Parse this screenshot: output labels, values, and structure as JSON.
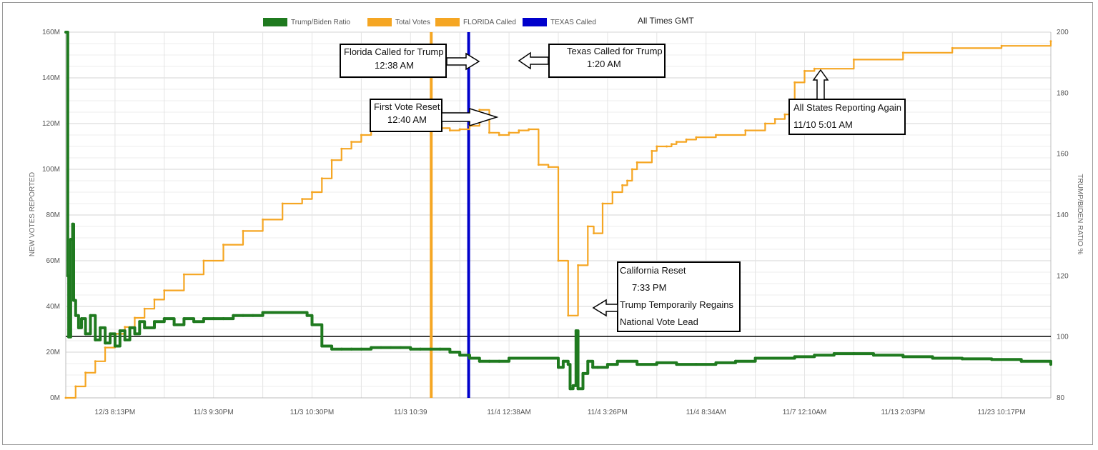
{
  "chart_data": {
    "type": "line",
    "grid": true,
    "legend_position": "top",
    "timezone_note": "All Times GMT",
    "legend": [
      {
        "label": "Trump/Biden Ratio",
        "color": "#1f7a1f"
      },
      {
        "label": "Total Votes",
        "color": "#f5a623"
      },
      {
        "label": "FLORIDA Called",
        "color": "#f5a623"
      },
      {
        "label": "TEXAS Called",
        "color": "#0000cc"
      }
    ],
    "xlabel": "",
    "x_tick_labels": [
      "12/3 8:13PM",
      "11/3 9:30PM",
      "11/3 10:30PM",
      "11/3 10:39",
      "11/4 12:38AM",
      "11/4 3:26PM",
      "11/4 8:34AM",
      "11/7 12:10AM",
      "11/13 2:03PM",
      "11/23 10:17PM"
    ],
    "x_range": [
      0,
      100
    ],
    "y_left": {
      "label": "NEW VOTES REPORTED",
      "range": [
        0,
        160
      ],
      "ticks": [
        "0M",
        "20M",
        "40M",
        "60M",
        "80M",
        "100M",
        "120M",
        "140M",
        "160M"
      ]
    },
    "y_right": {
      "label": "TRUMP/BIDEN RATIO %",
      "range": [
        80,
        200
      ],
      "ticks": [
        "80",
        "100",
        "120",
        "140",
        "160",
        "180",
        "200"
      ]
    },
    "series": [
      {
        "name": "Total Votes",
        "axis": "left",
        "color": "#f5a623",
        "x": [
          0,
          1,
          2,
          3,
          4,
          5,
          6,
          7,
          8,
          9,
          10,
          12,
          14,
          16,
          18,
          20,
          22,
          24,
          25,
          26,
          27,
          28,
          29,
          30,
          31,
          32,
          33,
          34,
          35,
          36,
          37,
          38,
          39,
          40,
          41,
          42,
          43,
          44,
          45,
          46,
          47,
          48,
          49,
          50,
          51,
          52,
          53,
          53.6,
          54.5,
          55.5,
          56.5,
          57,
          57.5,
          58,
          59.5,
          60,
          61,
          61.5,
          62,
          63,
          64,
          66,
          69,
          71,
          72,
          73,
          73.8,
          74,
          75,
          76,
          80,
          85,
          90,
          95,
          100
        ],
        "values": [
          0,
          5,
          11,
          16,
          22,
          28,
          31,
          35,
          39,
          43,
          47,
          54,
          60,
          67,
          73,
          78,
          85,
          87,
          90,
          96,
          104,
          109,
          112,
          115,
          117,
          118.5,
          120,
          121,
          122,
          122.5,
          121,
          118,
          117,
          117.5,
          119,
          126,
          116,
          115,
          116,
          117,
          117.5,
          102,
          101,
          60,
          36,
          58,
          75,
          72,
          85,
          90,
          93,
          95,
          100,
          103,
          108,
          110,
          110,
          111,
          112,
          113,
          114,
          115,
          117,
          120,
          122,
          124,
          125,
          138,
          143,
          144,
          148,
          151,
          153,
          154,
          156
        ]
      },
      {
        "name": "Trump/Biden Ratio",
        "axis": "right",
        "color": "#1f7a1f",
        "x": [
          0,
          0.2,
          0.3,
          0.5,
          0.7,
          0.8,
          1,
          1.3,
          1.6,
          2,
          2.5,
          3,
          3.5,
          4,
          4.5,
          5,
          5.5,
          6,
          6.5,
          7,
          7.5,
          8,
          9,
          10,
          11,
          12,
          13,
          14,
          15,
          16,
          17,
          18,
          19,
          20,
          21,
          22,
          23,
          24,
          24.5,
          25,
          26,
          27,
          28,
          29,
          30,
          31,
          32,
          33,
          34,
          35,
          36,
          37,
          38,
          39,
          40,
          41,
          42,
          43,
          44,
          45,
          46,
          47,
          48,
          49,
          50,
          50.5,
          51,
          51.2,
          51.5,
          51.8,
          52,
          52.5,
          53,
          53.5,
          54,
          55,
          56,
          58,
          60,
          62,
          64,
          66,
          68,
          70,
          72,
          74,
          76,
          78,
          80,
          82,
          85,
          88,
          91,
          94,
          97,
          100
        ],
        "values": [
          200,
          120,
          100,
          132,
          137,
          112,
          107,
          103,
          106,
          101,
          107,
          99,
          103,
          98,
          101,
          97,
          102,
          99,
          103,
          101,
          105,
          103,
          105,
          106,
          104,
          106,
          105,
          106,
          106,
          106,
          107,
          107,
          107,
          108,
          108,
          108,
          108,
          108,
          107,
          104,
          97,
          96,
          96,
          96,
          96,
          96.5,
          96.5,
          96.5,
          96.5,
          96,
          96,
          96,
          96,
          95,
          94,
          93,
          92,
          92,
          92,
          93,
          93,
          93,
          93,
          93,
          90,
          92,
          91,
          83,
          84,
          102,
          83,
          88,
          92,
          90,
          90,
          91,
          92,
          91,
          91.5,
          91,
          91,
          91.5,
          92,
          93,
          93,
          93.5,
          94,
          94.5,
          94.5,
          94,
          93.5,
          93,
          92.8,
          92.6,
          92,
          91
        ]
      }
    ],
    "vertical_markers": [
      {
        "label": "FLORIDA Called",
        "x": 37.1,
        "color": "#f5a623"
      },
      {
        "label": "TEXAS Called",
        "x": 40.9,
        "color": "#0000cc"
      }
    ],
    "annotations": [
      {
        "lines": [
          "Florida Called for Trump",
          "12:38 AM"
        ]
      },
      {
        "lines": [
          "Texas Called for Trump",
          "1:20 AM"
        ]
      },
      {
        "lines": [
          "First Vote Reset",
          "12:40 AM"
        ]
      },
      {
        "lines": [
          "All States Reporting Again",
          "11/10 5:01 AM"
        ]
      },
      {
        "lines": [
          "California Reset",
          "7:33 PM",
          "Trump Temporarily Regains",
          "National Vote Lead"
        ]
      }
    ]
  }
}
